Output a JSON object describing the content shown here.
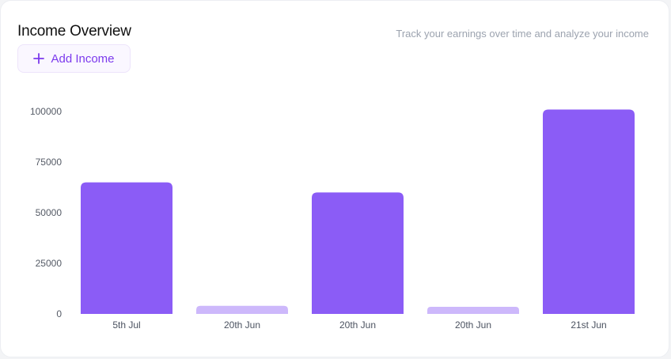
{
  "header": {
    "title": "Income Overview",
    "subtitle": "Track your earnings over time and analyze your income"
  },
  "actions": {
    "add_income_label": "Add Income",
    "add_icon": "plus-icon"
  },
  "colors": {
    "bar_primary": "#8b5cf6",
    "bar_light": "#cdb8fb",
    "accent": "#7c3aed"
  },
  "chart_data": {
    "type": "bar",
    "categories": [
      "5th Jul",
      "20th Jun",
      "20th Jun",
      "20th Jun",
      "21st Jun"
    ],
    "values": [
      65000,
      4000,
      60000,
      3500,
      101000
    ],
    "highlight": [
      true,
      false,
      true,
      false,
      true
    ],
    "yticks": [
      0,
      25000,
      50000,
      75000,
      100000
    ],
    "ylim": [
      0,
      100000
    ],
    "grid": false,
    "legend": "none"
  }
}
